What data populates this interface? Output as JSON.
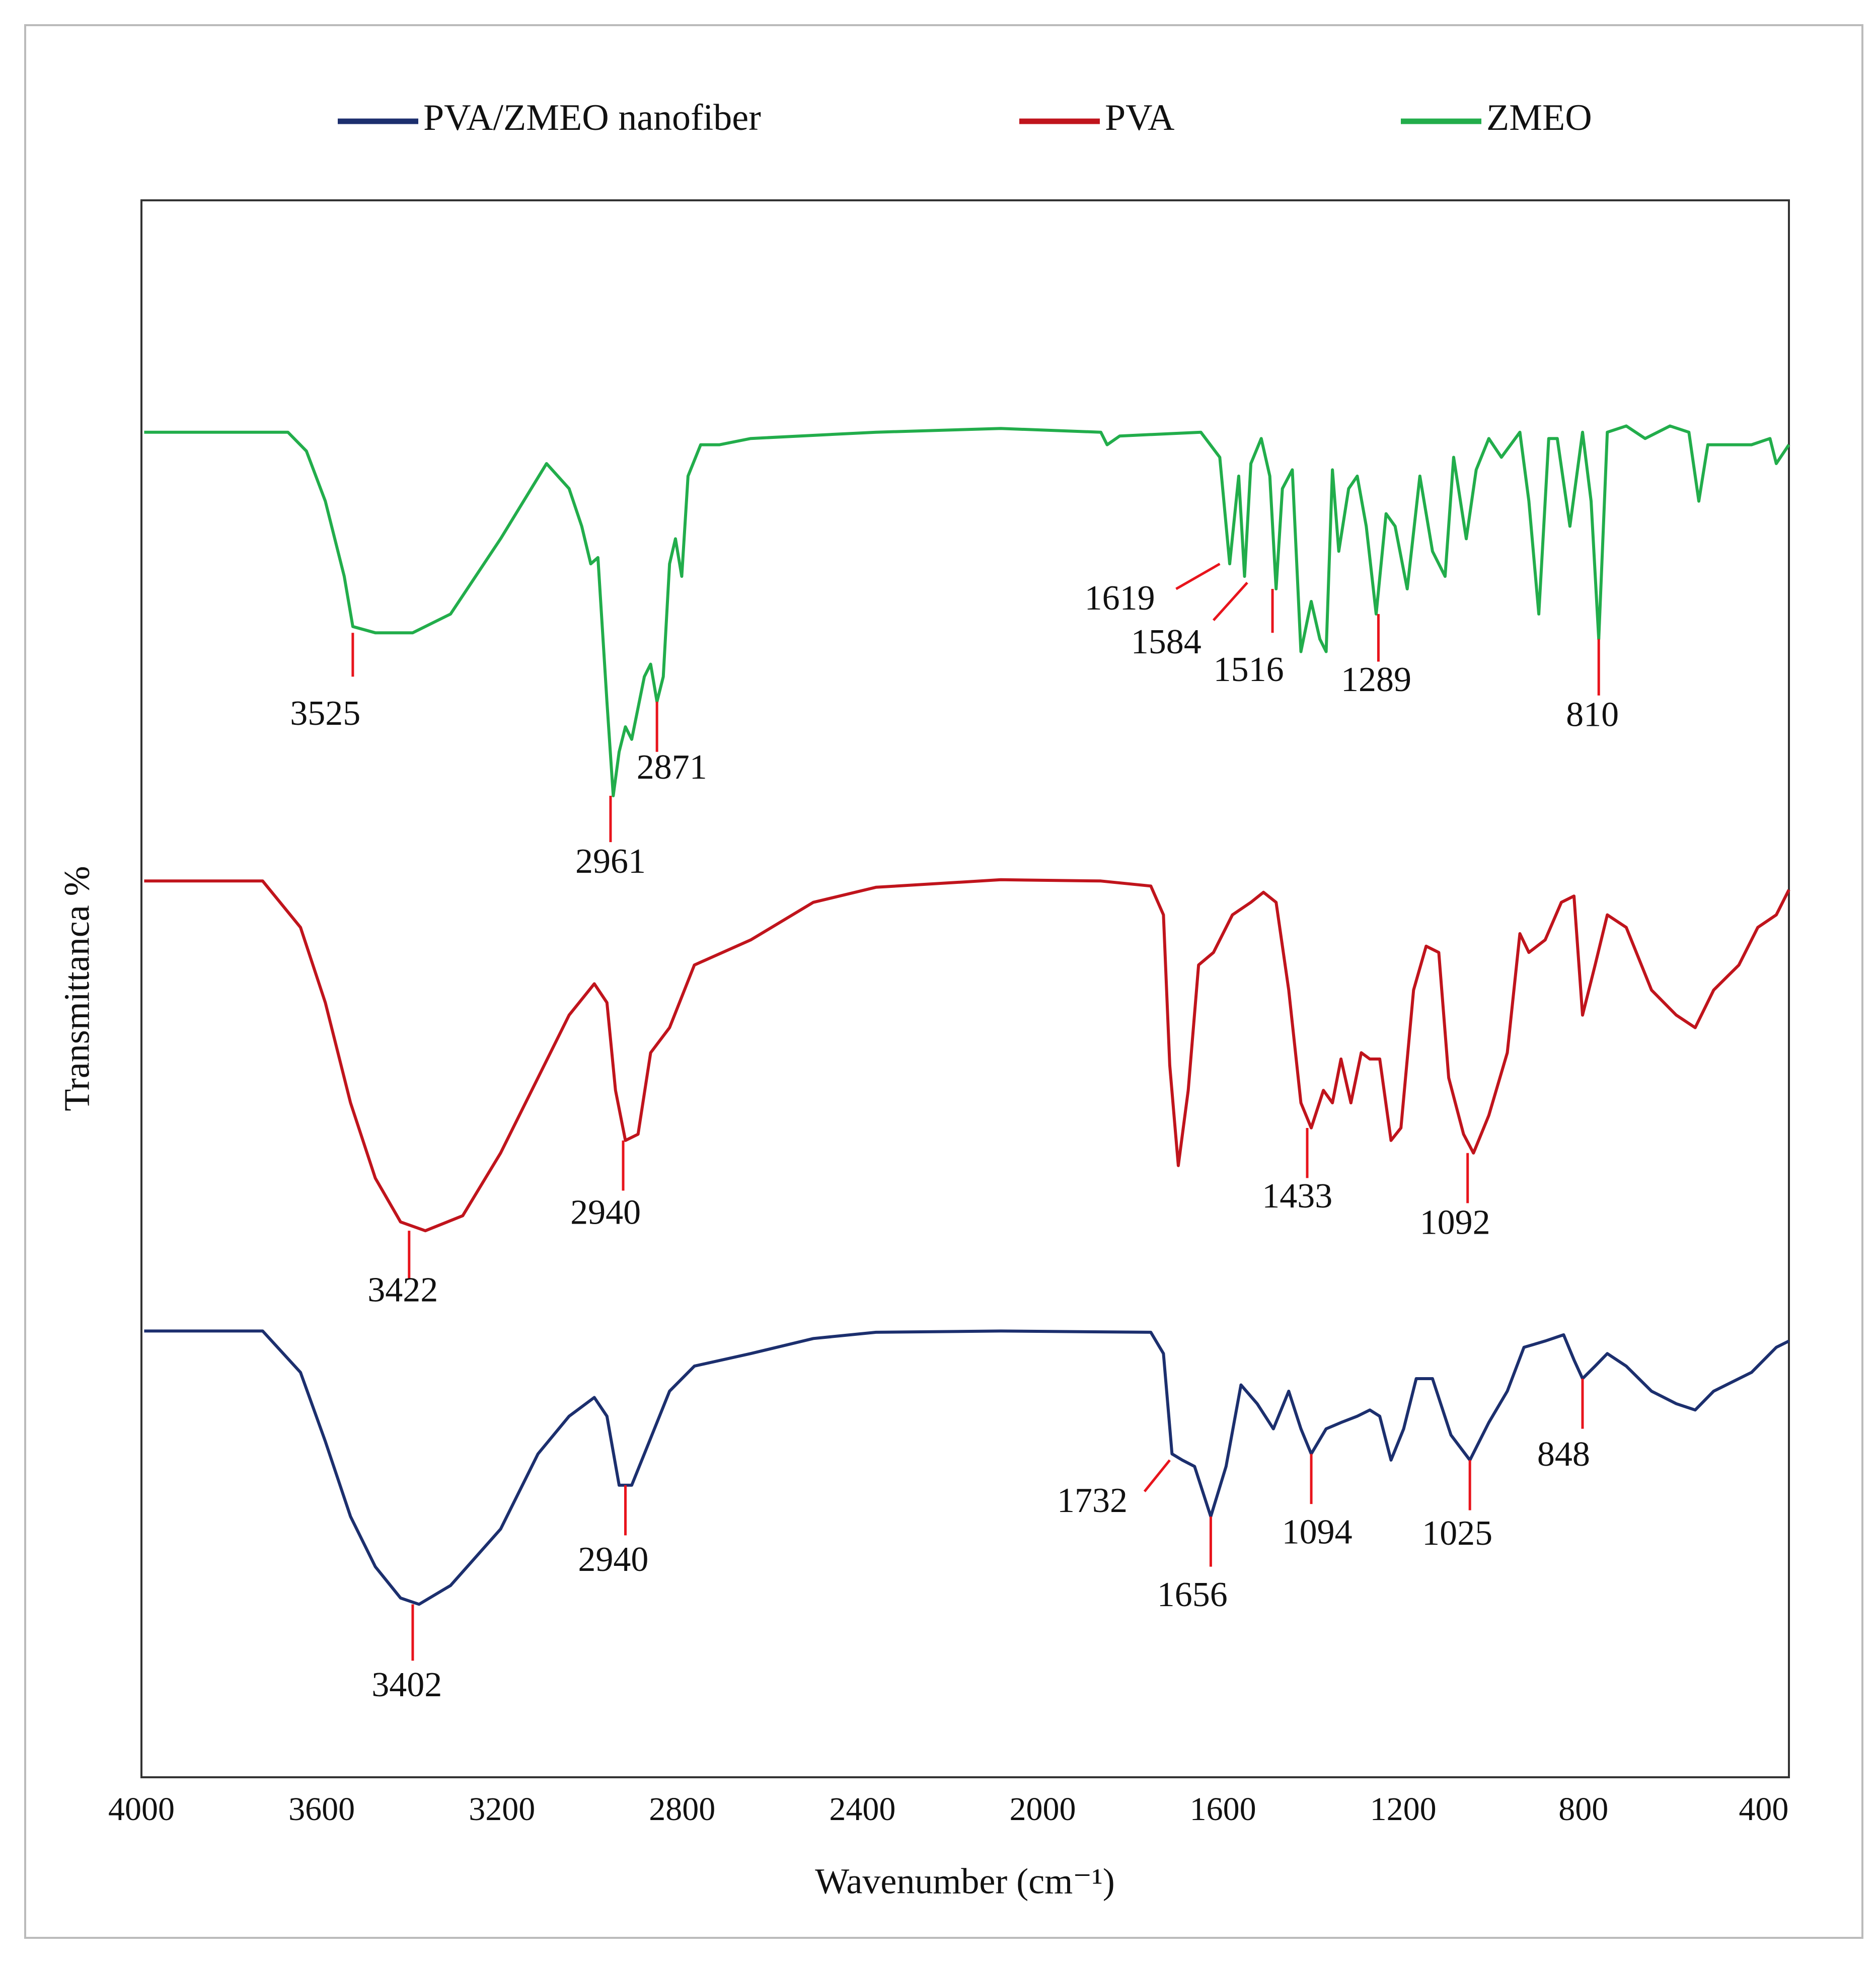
{
  "chart_data": {
    "type": "line",
    "xlabel": "Wavenumber (cm⁻¹)",
    "ylabel": "Transmittanca %",
    "xlim": [
      4000,
      344
    ],
    "ylim": [
      0,
      125.8
    ],
    "xticks": [
      4000,
      3600,
      3200,
      2800,
      2400,
      2000,
      1600,
      1200,
      800,
      400
    ],
    "legend": "top",
    "grid": false,
    "series": [
      {
        "name": "PVA/ZMEO nanofiber",
        "color": "#1c2f6e",
        "x": [
          3994,
          3731,
          3647,
          3592,
          3536,
          3481,
          3425,
          3384,
          3314,
          3203,
          3120,
          3051,
          2995,
          2967,
          2940,
          2912,
          2884,
          2828,
          2773,
          2648,
          2509,
          2370,
          2093,
          1760,
          1732,
          1713,
          1690,
          1663,
          1627,
          1593,
          1560,
          1524,
          1488,
          1454,
          1427,
          1404,
          1371,
          1338,
          1302,
          1274,
          1252,
          1227,
          1199,
          1171,
          1135,
          1094,
          1052,
          1010,
          969,
          932,
          885,
          844,
          821,
          802,
          774,
          747,
          705,
          649,
          594,
          552,
          511,
          427,
          372,
          344
        ],
        "values": [
          35.6,
          35.6,
          32.3,
          26.8,
          20.8,
          16.8,
          14.3,
          13.8,
          15.3,
          19.8,
          25.8,
          28.8,
          30.3,
          28.8,
          23.3,
          23.3,
          25.8,
          30.8,
          32.8,
          33.8,
          35.0,
          35.5,
          35.6,
          35.5,
          33.8,
          25.8,
          25.3,
          24.8,
          20.8,
          24.8,
          31.3,
          29.8,
          27.8,
          30.8,
          27.8,
          25.8,
          27.8,
          28.3,
          28.8,
          29.3,
          28.8,
          25.3,
          27.8,
          31.8,
          31.8,
          27.3,
          25.3,
          28.3,
          30.8,
          34.3,
          34.8,
          35.3,
          33.3,
          31.8,
          32.8,
          33.8,
          32.8,
          30.8,
          29.8,
          29.3,
          30.8,
          32.3,
          34.3,
          34.8
        ]
      },
      {
        "name": "PVA",
        "color": "#c0141c",
        "x": [
          3994,
          3731,
          3647,
          3592,
          3536,
          3481,
          3425,
          3370,
          3287,
          3203,
          3120,
          3051,
          2995,
          2967,
          2948,
          2926,
          2898,
          2870,
          2828,
          2773,
          2648,
          2509,
          2370,
          2093,
          1871,
          1760,
          1732,
          1718,
          1699,
          1677,
          1654,
          1621,
          1579,
          1538,
          1510,
          1482,
          1454,
          1427,
          1404,
          1377,
          1357,
          1338,
          1316,
          1293,
          1274,
          1252,
          1227,
          1205,
          1177,
          1149,
          1121,
          1099,
          1066,
          1044,
          1010,
          969,
          941,
          921,
          885,
          849,
          821,
          802,
          774,
          747,
          705,
          649,
          594,
          552,
          511,
          455,
          413,
          372,
          344
        ],
        "values": [
          71.5,
          71.5,
          67.8,
          61.8,
          53.8,
          47.8,
          44.3,
          43.6,
          44.8,
          49.8,
          55.8,
          60.8,
          63.3,
          61.8,
          54.8,
          50.8,
          51.3,
          57.8,
          59.8,
          64.8,
          66.8,
          69.8,
          71.0,
          71.6,
          71.5,
          71.1,
          68.8,
          56.8,
          48.8,
          54.8,
          64.8,
          65.8,
          68.8,
          69.8,
          70.6,
          69.8,
          62.8,
          53.8,
          51.8,
          54.8,
          53.8,
          57.3,
          53.8,
          57.8,
          57.3,
          57.3,
          50.8,
          51.8,
          62.8,
          66.3,
          65.8,
          55.8,
          51.3,
          49.8,
          52.8,
          57.8,
          67.3,
          65.8,
          66.8,
          69.8,
          70.3,
          60.8,
          64.8,
          68.8,
          67.8,
          62.8,
          60.8,
          59.8,
          62.8,
          64.8,
          67.8,
          68.8,
          70.8
        ]
      },
      {
        "name": "ZMEO",
        "color": "#22ad4b",
        "x": [
          3994,
          3675,
          3634,
          3592,
          3550,
          3531,
          3481,
          3398,
          3314,
          3203,
          3101,
          3051,
          3023,
          3003,
          2987,
          2967,
          2953,
          2940,
          2926,
          2912,
          2884,
          2870,
          2856,
          2842,
          2828,
          2815,
          2801,
          2787,
          2759,
          2717,
          2648,
          2370,
          2093,
          1871,
          1857,
          1829,
          1649,
          1607,
          1585,
          1565,
          1552,
          1538,
          1515,
          1496,
          1482,
          1468,
          1446,
          1427,
          1404,
          1385,
          1371,
          1357,
          1343,
          1321,
          1302,
          1282,
          1260,
          1238,
          1218,
          1191,
          1163,
          1135,
          1107,
          1088,
          1060,
          1038,
          1010,
          982,
          941,
          921,
          899,
          877,
          858,
          830,
          802,
          783,
          766,
          747,
          705,
          663,
          608,
          566,
          544,
          524,
          483,
          427,
          386,
          372,
          344
        ],
        "values": [
          107.3,
          107.3,
          105.8,
          101.8,
          95.8,
          91.8,
          91.3,
          91.3,
          92.8,
          98.8,
          104.8,
          102.8,
          99.8,
          96.8,
          97.3,
          85.8,
          78.3,
          81.8,
          83.8,
          82.8,
          87.8,
          88.8,
          85.8,
          87.8,
          96.8,
          98.8,
          95.8,
          103.8,
          106.3,
          106.3,
          106.8,
          107.3,
          107.6,
          107.3,
          106.3,
          107.0,
          107.3,
          105.3,
          96.8,
          103.8,
          95.8,
          104.8,
          106.8,
          103.8,
          94.8,
          102.8,
          104.3,
          89.8,
          93.8,
          90.8,
          89.8,
          104.3,
          97.8,
          102.8,
          103.8,
          99.8,
          92.8,
          100.8,
          99.8,
          94.8,
          103.8,
          97.8,
          95.8,
          105.3,
          98.8,
          104.3,
          106.8,
          105.3,
          107.3,
          101.8,
          92.8,
          106.8,
          106.8,
          99.8,
          107.3,
          101.8,
          90.8,
          107.3,
          107.8,
          106.8,
          107.8,
          107.3,
          101.8,
          106.3,
          106.3,
          106.3,
          106.8,
          104.8,
          106.3
        ]
      }
    ],
    "annotations": [
      {
        "text": "3525",
        "x": 3531,
        "y": 91.3,
        "x2": 3531,
        "y2": 87.8,
        "text_x": 3592,
        "text_y": 84.6
      },
      {
        "text": "2961",
        "x": 2959,
        "y": 78.3,
        "x2": 2959,
        "y2": 74.6,
        "text_x": 2959,
        "text_y": 72.8
      },
      {
        "text": "2871",
        "x": 2856,
        "y": 85.8,
        "x2": 2856,
        "y2": 81.8,
        "text_x": 2823,
        "text_y": 80.3
      },
      {
        "text": "1619",
        "x": 1607,
        "y": 96.8,
        "x2": 1704,
        "y2": 94.8,
        "text_x": 1829,
        "text_y": 93.8
      },
      {
        "text": "1584",
        "x": 1546,
        "y": 95.3,
        "x2": 1621,
        "y2": 92.3,
        "text_x": 1726,
        "text_y": 90.3
      },
      {
        "text": "1516",
        "x": 1490,
        "y": 94.8,
        "x2": 1490,
        "y2": 91.3,
        "text_x": 1543,
        "text_y": 88.1
      },
      {
        "text": "1289",
        "x": 1255,
        "y": 92.8,
        "x2": 1255,
        "y2": 89.0,
        "text_x": 1260,
        "text_y": 87.3
      },
      {
        "text": "810",
        "x": 766,
        "y": 90.8,
        "x2": 766,
        "y2": 86.3,
        "text_x": 780,
        "text_y": 84.5
      },
      {
        "text": "2940",
        "x": 2931,
        "y": 50.8,
        "x2": 2931,
        "y2": 46.8,
        "text_x": 2970,
        "text_y": 44.8
      },
      {
        "text": "3422",
        "x": 3406,
        "y": 43.6,
        "x2": 3406,
        "y2": 39.8,
        "text_x": 3420,
        "text_y": 38.6
      },
      {
        "text": "1433",
        "x": 1413,
        "y": 51.8,
        "x2": 1413,
        "y2": 47.8,
        "text_x": 1435,
        "text_y": 46.1
      },
      {
        "text": "1092",
        "x": 1057,
        "y": 49.8,
        "x2": 1057,
        "y2": 45.8,
        "text_x": 1085,
        "text_y": 44.0
      },
      {
        "text": "2940",
        "x": 2926,
        "y": 23.3,
        "x2": 2926,
        "y2": 19.3,
        "text_x": 2953,
        "text_y": 17.1
      },
      {
        "text": "3402",
        "x": 3398,
        "y": 13.8,
        "x2": 3398,
        "y2": 9.3,
        "text_x": 3411,
        "text_y": 7.1
      },
      {
        "text": "1732",
        "x": 1718,
        "y": 25.3,
        "x2": 1774,
        "y2": 22.8,
        "text_x": 1890,
        "text_y": 21.8
      },
      {
        "text": "1656",
        "x": 1627,
        "y": 20.8,
        "x2": 1627,
        "y2": 16.8,
        "text_x": 1668,
        "text_y": 14.3
      },
      {
        "text": "1094",
        "x": 1404,
        "y": 25.8,
        "x2": 1404,
        "y2": 21.8,
        "text_x": 1391,
        "text_y": 19.3
      },
      {
        "text": "1025",
        "x": 1052,
        "y": 25.3,
        "x2": 1052,
        "y2": 21.3,
        "text_x": 1080,
        "text_y": 19.2
      },
      {
        "text": "848",
        "x": 802,
        "y": 31.8,
        "x2": 802,
        "y2": 27.8,
        "text_x": 844,
        "text_y": 25.5
      }
    ]
  }
}
